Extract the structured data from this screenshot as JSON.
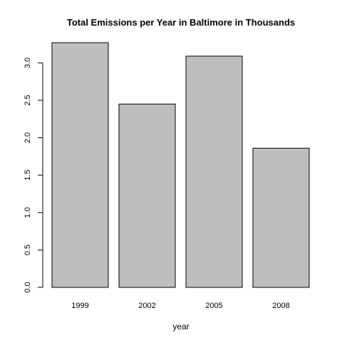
{
  "chart_data": {
    "type": "bar",
    "title": "Total Emissions per Year in Baltimore in Thousands",
    "xlabel": "year",
    "ylabel": "",
    "categories": [
      "1999",
      "2002",
      "2005",
      "2008"
    ],
    "values": [
      3.27,
      2.45,
      3.09,
      1.86
    ],
    "ylim": [
      0,
      3.27
    ],
    "yticks": [
      "0.0",
      "0.5",
      "1.0",
      "1.5",
      "2.0",
      "2.5",
      "3.0"
    ],
    "ytick_values": [
      0,
      0.5,
      1.0,
      1.5,
      2.0,
      2.5,
      3.0
    ],
    "bar_fill": "#bebebe",
    "bar_stroke": "#000000",
    "grid": false,
    "legend": "none"
  }
}
